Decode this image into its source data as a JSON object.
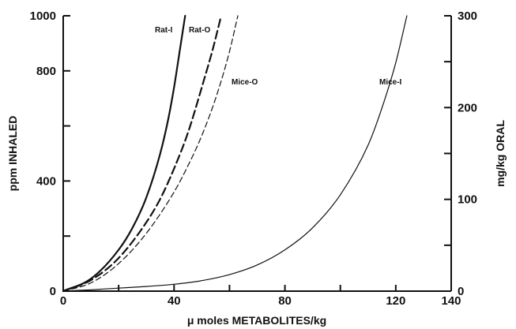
{
  "chart_data": {
    "type": "line",
    "title": "",
    "xlabel": "μ moles METABOLITES/kg",
    "ylabel_left": "ppm INHALED",
    "ylabel_right": "mg/kg ORAL",
    "xlim": [
      0,
      140
    ],
    "ylim_left": [
      0,
      1000
    ],
    "ylim_right": [
      0,
      300
    ],
    "x_ticks": [
      "0",
      "40",
      "80",
      "120",
      "140"
    ],
    "y_left_ticks": [
      "0",
      "400",
      "800",
      "1000"
    ],
    "y_right_ticks": [
      "0",
      "100",
      "200",
      "300"
    ],
    "grid": false,
    "series": [
      {
        "name": "Rat-I",
        "style": "solid",
        "axis": "left",
        "x": [
          0,
          10,
          20,
          25,
          30,
          35,
          38,
          40,
          42,
          44
        ],
        "y": [
          0,
          45,
          150,
          230,
          340,
          500,
          630,
          740,
          870,
          1000
        ]
      },
      {
        "name": "Rat-O",
        "style": "dashed",
        "axis": "left",
        "x": [
          0,
          10,
          20,
          30,
          35,
          40,
          45,
          50,
          54,
          57
        ],
        "y": [
          0,
          40,
          120,
          250,
          335,
          445,
          575,
          740,
          880,
          1000
        ]
      },
      {
        "name": "Mice-O",
        "style": "dashed-fine",
        "axis": "left",
        "x": [
          0,
          10,
          20,
          30,
          40,
          45,
          50,
          55,
          60,
          63
        ],
        "y": [
          0,
          30,
          100,
          210,
          360,
          455,
          565,
          700,
          870,
          1000
        ]
      },
      {
        "name": "Mice-I",
        "style": "solid-thin",
        "axis": "left",
        "x": [
          0,
          10,
          20,
          30,
          40,
          50,
          60,
          70,
          80,
          90,
          100,
          110,
          115,
          120,
          124
        ],
        "y": [
          0,
          5,
          11,
          17,
          25,
          38,
          60,
          95,
          150,
          230,
          350,
          530,
          665,
          830,
          1000
        ]
      }
    ]
  }
}
